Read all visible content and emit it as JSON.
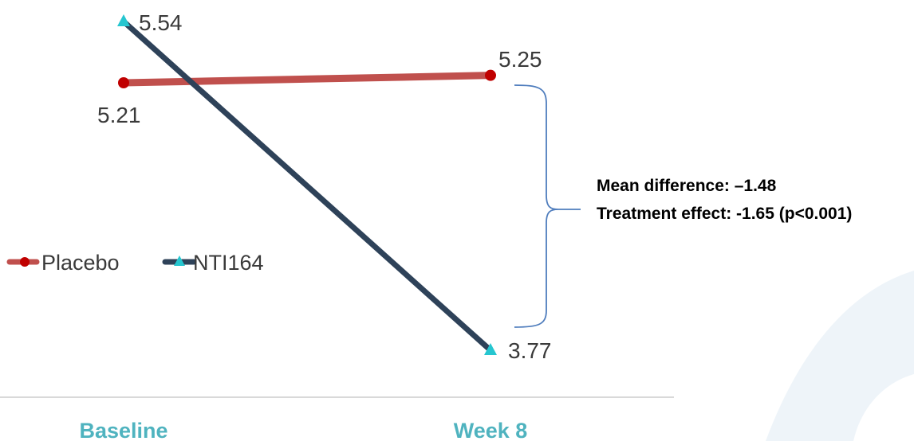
{
  "chart_data": {
    "type": "line",
    "categories": [
      "Baseline",
      "Week 8"
    ],
    "series": [
      {
        "name": "Placebo",
        "values": [
          5.21,
          5.25
        ],
        "value_labels": [
          "5.21",
          "5.25"
        ],
        "color": "#c0504d",
        "marker_color": "#c00000",
        "marker": "circle"
      },
      {
        "name": "NTI164",
        "values": [
          5.54,
          3.77
        ],
        "value_labels": [
          "5.54",
          "3.77"
        ],
        "color": "#2e4259",
        "marker_color": "#26c6d0",
        "marker": "triangle"
      }
    ],
    "annotation": {
      "lines": [
        "Mean difference: –1.48",
        "Treatment effect: -1.65 (p<0.001)"
      ]
    },
    "legend": {
      "position": "left-middle"
    },
    "tick_color": "#4fb3bf",
    "grid": false
  }
}
